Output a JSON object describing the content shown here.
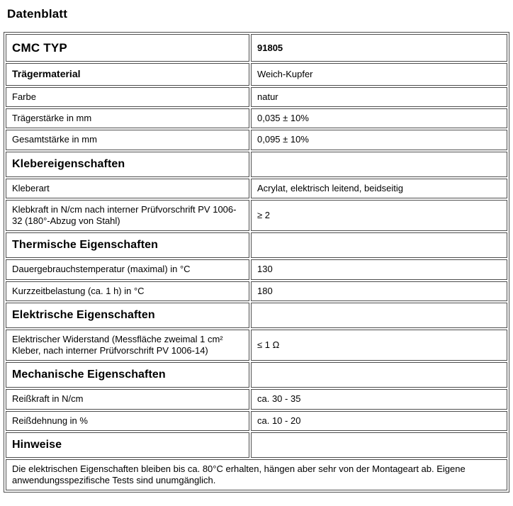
{
  "page": {
    "title": "Datenblatt"
  },
  "colors": {
    "background": "#ffffff",
    "text": "#000000",
    "border": "#4d4d4d"
  },
  "table": {
    "rows": [
      {
        "type": "title",
        "label": "CMC TYP",
        "value": "91805"
      },
      {
        "type": "sub",
        "label": "Trägermaterial",
        "value": "Weich-Kupfer"
      },
      {
        "type": "plain",
        "label": "Farbe",
        "value": "natur"
      },
      {
        "type": "plain",
        "label": "Trägerstärke in mm",
        "value": "0,035 ± 10%"
      },
      {
        "type": "plain",
        "label": "Gesamtstärke in mm",
        "value": "0,095 ± 10%"
      },
      {
        "type": "section",
        "label": "Klebereigenschaften",
        "value": ""
      },
      {
        "type": "plain",
        "label": "Kleberart",
        "value": "Acrylat, elektrisch leitend, beidseitig"
      },
      {
        "type": "plain",
        "label": "Klebkraft in N/cm nach interner Prüfvorschrift PV 1006-32 (180°-Abzug von Stahl)",
        "value": "≥ 2"
      },
      {
        "type": "section",
        "label": "Thermische Eigenschaften",
        "value": ""
      },
      {
        "type": "plain",
        "label": "Dauergebrauchstemperatur (maximal) in °C",
        "value": "130"
      },
      {
        "type": "plain",
        "label": "Kurzzeitbelastung (ca. 1 h) in °C",
        "value": "180"
      },
      {
        "type": "section",
        "label": "Elektrische Eigenschaften",
        "value": ""
      },
      {
        "type": "plain",
        "label": "Elektrischer Widerstand (Messfläche zweimal 1 cm² Kleber, nach interner Prüfvorschrift PV 1006-14)",
        "value": "≤ 1 Ω"
      },
      {
        "type": "section",
        "label": "Mechanische Eigenschaften",
        "value": ""
      },
      {
        "type": "plain",
        "label": "Reißkraft in N/cm",
        "value": "ca. 30 - 35"
      },
      {
        "type": "plain",
        "label": "Reißdehnung in %",
        "value": "ca. 10 - 20"
      },
      {
        "type": "section",
        "label": "Hinweise",
        "value": ""
      }
    ],
    "note": "Die elektrischen Eigenschaften bleiben bis ca. 80°C erhalten, hängen aber sehr von der Montageart ab. Eigene anwendungsspezifische Tests sind unumgänglich."
  }
}
